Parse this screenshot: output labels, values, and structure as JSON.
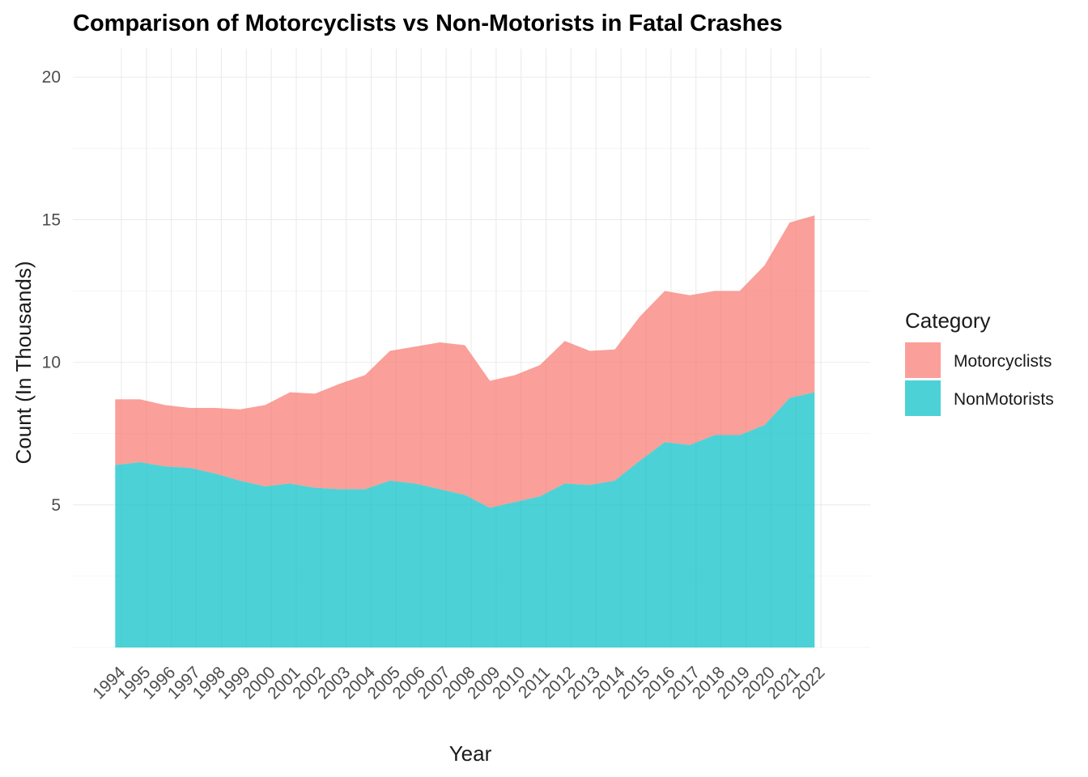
{
  "chart_data": {
    "type": "area",
    "stacked": true,
    "title": "Comparison of Motorcyclists vs Non-Motorists in Fatal Crashes",
    "xlabel": "Year",
    "ylabel": "Count (In Thousands)",
    "x": [
      1994,
      1995,
      1996,
      1997,
      1998,
      1999,
      2000,
      2001,
      2002,
      2003,
      2004,
      2005,
      2006,
      2007,
      2008,
      2009,
      2010,
      2011,
      2012,
      2013,
      2014,
      2015,
      2016,
      2017,
      2018,
      2019,
      2020,
      2021,
      2022
    ],
    "x_tick_labels": [
      "1994",
      "1995",
      "1996",
      "1997",
      "1998",
      "1999",
      "2000",
      "2001",
      "2002",
      "2003",
      "2004",
      "2005",
      "2006",
      "2007",
      "2008",
      "2009",
      "2010",
      "2011",
      "2012",
      "2013",
      "2014",
      "2015",
      "2016",
      "2017",
      "2018",
      "2019",
      "2020",
      "2021",
      "2022"
    ],
    "ylim": [
      0,
      21
    ],
    "y_ticks": [
      5,
      10,
      15,
      20
    ],
    "y_tick_labels": [
      "5",
      "10",
      "15",
      "20"
    ],
    "grid": true,
    "legend": {
      "title": "Category",
      "placement": "right"
    },
    "series": [
      {
        "name": "NonMotorists",
        "color": "#00BFC4",
        "values": [
          6.4,
          6.5,
          6.35,
          6.3,
          6.1,
          5.85,
          5.65,
          5.75,
          5.6,
          5.55,
          5.55,
          5.85,
          5.75,
          5.55,
          5.35,
          4.9,
          5.1,
          5.3,
          5.75,
          5.7,
          5.85,
          6.55,
          7.2,
          7.1,
          7.45,
          7.45,
          7.8,
          8.75,
          8.95
        ]
      },
      {
        "name": "Motorcyclists",
        "color": "#F8766D",
        "values": [
          2.3,
          2.2,
          2.15,
          2.1,
          2.3,
          2.5,
          2.85,
          3.2,
          3.3,
          3.7,
          4.0,
          4.55,
          4.8,
          5.15,
          5.25,
          4.45,
          4.45,
          4.6,
          5.0,
          4.7,
          4.6,
          5.05,
          5.3,
          5.25,
          5.05,
          5.05,
          5.6,
          6.15,
          6.2
        ]
      }
    ]
  }
}
